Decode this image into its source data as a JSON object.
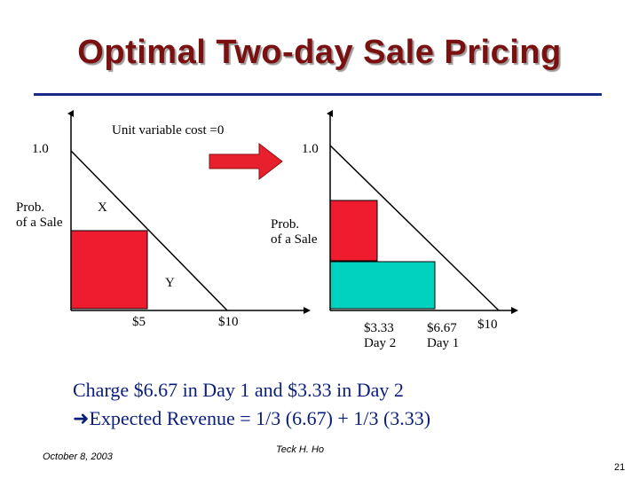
{
  "title": "Optimal Two-day Sale Pricing",
  "cost_note": "Unit variable cost =0",
  "left_chart": {
    "y_max_label": "1.0",
    "y_axis_label_line1": "Prob.",
    "y_axis_label_line2": "of a Sale",
    "point_x_label": "X",
    "point_y_label": "Y",
    "tick_5": "$5",
    "tick_10": "$10",
    "fill_color": "#ee1c2e"
  },
  "right_chart": {
    "y_max_label": "1.0",
    "y_axis_label_line1": "Prob.",
    "y_axis_label_line2": "of a Sale",
    "tick_day2_price": "$3.33",
    "tick_day2_label": "Day 2",
    "tick_day1_price": "$6.67",
    "tick_day1_label": "Day 1",
    "tick_10": "$10",
    "day1_color": "#ee1c2e",
    "day2_color": "#00d2c0"
  },
  "arrow_color": "#e8202e",
  "conclusion_line1": "Charge $6.67 in Day 1 and $3.33 in Day 2",
  "conclusion_arrow_icon": "right-arrow-icon",
  "conclusion_line2": "Expected Revenue = 1/3 (6.67) + 1/3 (3.33)",
  "footer": {
    "date": "October 8, 2003",
    "author": "Teck H. Ho",
    "page_number": "21"
  }
}
